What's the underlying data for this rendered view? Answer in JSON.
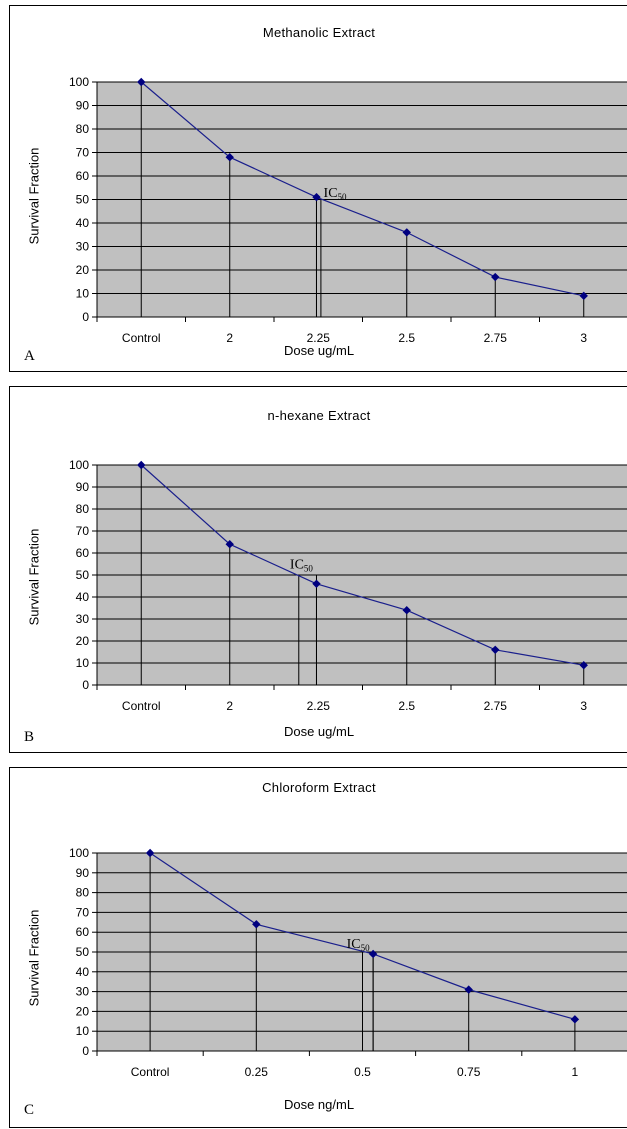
{
  "chart_data": [
    {
      "type": "line",
      "title": "Methanolic Extract",
      "panel_label": "A",
      "xlabel": "Dose ug/mL",
      "ylabel": "Survival Fraction",
      "categories": [
        "Control",
        "2",
        "2.25",
        "2.5",
        "2.75",
        "3"
      ],
      "values": [
        100,
        68,
        51,
        36,
        17,
        9
      ],
      "ylim": [
        0,
        100
      ],
      "yticks": [
        0,
        10,
        20,
        30,
        40,
        50,
        60,
        70,
        80,
        90,
        100
      ],
      "grid": true,
      "point_positions": [
        0,
        1,
        1.98,
        3,
        4,
        5
      ],
      "ic50_lines": [
        1.98,
        2.03
      ],
      "ic50_value": 50,
      "annotation": {
        "text": "IC",
        "subscript": "50",
        "x": 2.06,
        "y": 51
      }
    },
    {
      "type": "line",
      "title": "n-hexane Extract",
      "panel_label": "B",
      "xlabel": "Dose ug/mL",
      "ylabel": "Survival Fraction",
      "categories": [
        "Control",
        "2",
        "2.25",
        "2.5",
        "2.75",
        "3"
      ],
      "values": [
        100,
        64,
        46,
        34,
        16,
        9
      ],
      "ylim": [
        0,
        100
      ],
      "yticks": [
        0,
        10,
        20,
        30,
        40,
        50,
        60,
        70,
        80,
        90,
        100
      ],
      "grid": true,
      "point_positions": [
        0,
        1,
        1.98,
        3,
        4,
        5
      ],
      "ic50_lines": [
        1.78,
        1.98
      ],
      "ic50_value": 50,
      "annotation": {
        "text": "IC",
        "subscript": "50",
        "x": 1.68,
        "y": 53
      }
    },
    {
      "type": "line",
      "title": "Chloroform Extract",
      "panel_label": "C",
      "xlabel": "Dose ng/mL",
      "ylabel": "Survival Fraction",
      "categories": [
        "Control",
        "0.25",
        "0.5",
        "0.75",
        "1"
      ],
      "values": [
        100,
        64,
        49,
        31,
        16
      ],
      "ylim": [
        0,
        100
      ],
      "yticks": [
        0,
        10,
        20,
        30,
        40,
        50,
        60,
        70,
        80,
        90,
        100
      ],
      "grid": true,
      "point_positions": [
        0,
        1,
        2.1,
        3,
        4
      ],
      "ic50_lines": [
        2.0,
        2.1
      ],
      "ic50_value": 50,
      "annotation": {
        "text": "IC",
        "subscript": "50",
        "x": 1.85,
        "y": 52
      }
    }
  ]
}
